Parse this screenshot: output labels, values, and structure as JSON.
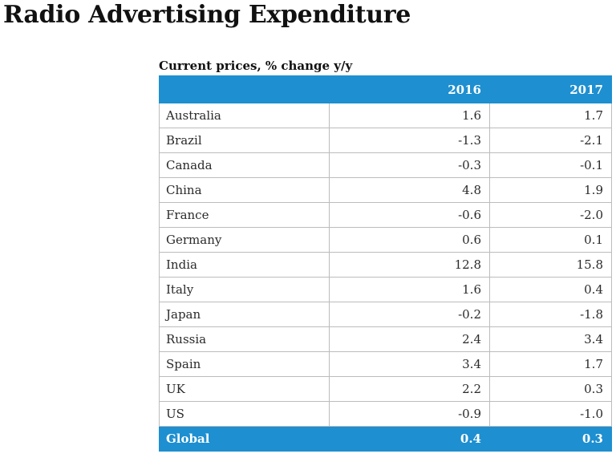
{
  "chart_data": {
    "type": "table",
    "title": "Radio Advertising Expenditure",
    "subtitle": "Current prices, % change y/y",
    "columns": [
      "",
      "2016",
      "2017"
    ],
    "rows": [
      {
        "country": "Australia",
        "y2016": "1.6",
        "y2017": "1.7"
      },
      {
        "country": "Brazil",
        "y2016": "-1.3",
        "y2017": "-2.1"
      },
      {
        "country": "Canada",
        "y2016": "-0.3",
        "y2017": "-0.1"
      },
      {
        "country": "China",
        "y2016": "4.8",
        "y2017": "1.9"
      },
      {
        "country": "France",
        "y2016": "-0.6",
        "y2017": "-2.0"
      },
      {
        "country": "Germany",
        "y2016": "0.6",
        "y2017": "0.1"
      },
      {
        "country": "India",
        "y2016": "12.8",
        "y2017": "15.8"
      },
      {
        "country": "Italy",
        "y2016": "1.6",
        "y2017": "0.4"
      },
      {
        "country": "Japan",
        "y2016": "-0.2",
        "y2017": "-1.8"
      },
      {
        "country": "Russia",
        "y2016": "2.4",
        "y2017": "3.4"
      },
      {
        "country": "Spain",
        "y2016": "3.4",
        "y2017": "1.7"
      },
      {
        "country": "UK",
        "y2016": "2.2",
        "y2017": "0.3"
      },
      {
        "country": "US",
        "y2016": "-0.9",
        "y2017": "-1.0"
      }
    ],
    "total": {
      "country": "Global",
      "y2016": "0.4",
      "y2017": "0.3"
    },
    "colors": {
      "header_bg": "#1e8fd0",
      "header_text": "#ffffff",
      "grid": "#bcbcbc"
    }
  }
}
